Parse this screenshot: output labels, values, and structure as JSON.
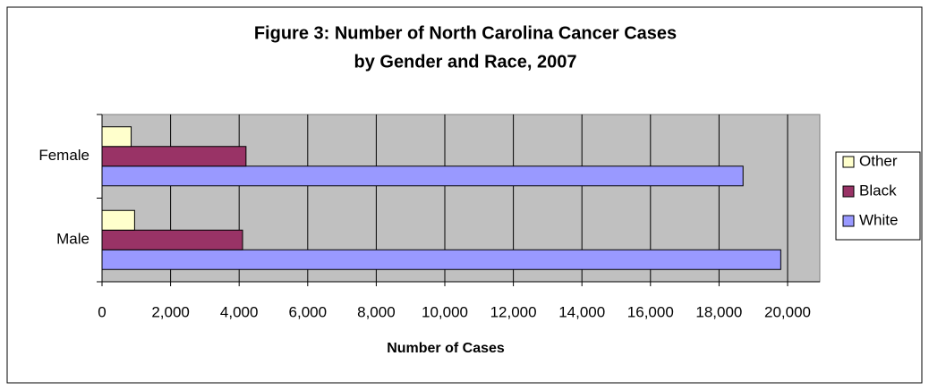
{
  "chart_data": {
    "type": "bar",
    "orientation": "horizontal",
    "title": [
      "Figure 3: Number of North Carolina Cancer Cases",
      "by Gender and Race, 2007"
    ],
    "xlabel": "Number of Cases",
    "categories": [
      "Male",
      "Female"
    ],
    "series": [
      {
        "name": "White",
        "color": "#9999ff",
        "values": [
          19800,
          18700
        ]
      },
      {
        "name": "Black",
        "color": "#993366",
        "values": [
          4100,
          4200
        ]
      },
      {
        "name": "Other",
        "color": "#ffffcc",
        "values": [
          950,
          850
        ]
      }
    ],
    "xlim": [
      0,
      20000
    ],
    "xticks": [
      0,
      {
        "value": 2000,
        "label": "2,000"
      },
      {
        "value": 4000,
        "label": "4,000"
      },
      {
        "value": 6000,
        "label": "6,000"
      },
      {
        "value": 8000,
        "label": "8,000"
      },
      {
        "value": 10000,
        "label": "10,000"
      },
      {
        "value": 12000,
        "label": "12,000"
      },
      {
        "value": 14000,
        "label": "14,000"
      },
      {
        "value": 16000,
        "label": "16,000"
      },
      {
        "value": 18000,
        "label": "18,000"
      },
      {
        "value": 20000,
        "label": "20,000"
      }
    ],
    "grid": true,
    "legend": "right"
  }
}
